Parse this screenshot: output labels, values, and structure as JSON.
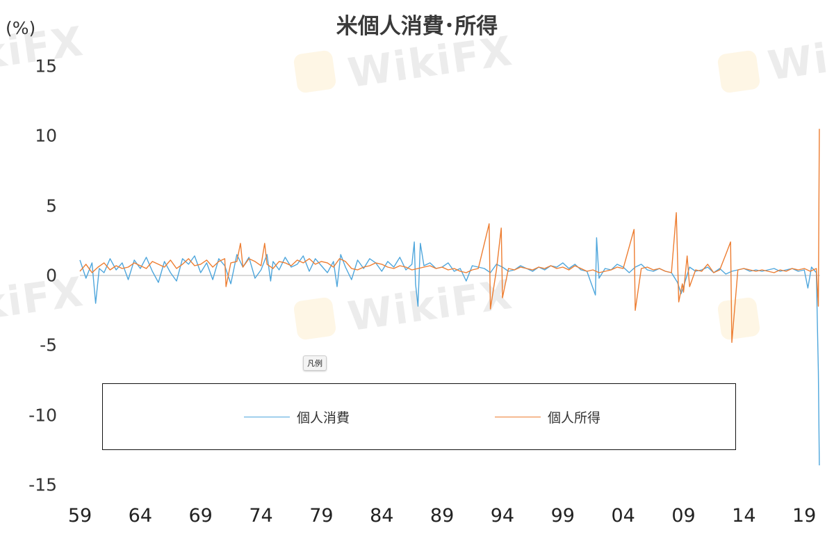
{
  "watermark": "WikiFX",
  "chart_data": {
    "type": "line",
    "title": "米個人消費･所得",
    "ylabel": "(%)",
    "xlabel": "",
    "ylim": [
      -15,
      15
    ],
    "xlim": [
      1959,
      2020.3
    ],
    "y_ticks": [
      "15",
      "10",
      "5",
      "0",
      "-5",
      "-10",
      "-15"
    ],
    "x_ticks": [
      "59",
      "64",
      "69",
      "74",
      "79",
      "84",
      "89",
      "94",
      "99",
      "04",
      "09",
      "14",
      "19"
    ],
    "grid": false,
    "zero_line": true,
    "legend_placement": "bottom-inside",
    "legend_tooltip": "凡例",
    "series": [
      {
        "name": "個人消費",
        "color": "#4ea6dc",
        "points": [
          [
            1959,
            1.1
          ],
          [
            1959.5,
            -0.2
          ],
          [
            1960,
            0.9
          ],
          [
            1960.3,
            -2.0
          ],
          [
            1960.6,
            0.5
          ],
          [
            1961,
            0.2
          ],
          [
            1961.5,
            1.2
          ],
          [
            1962,
            0.4
          ],
          [
            1962.5,
            0.9
          ],
          [
            1963,
            -0.3
          ],
          [
            1963.5,
            1.1
          ],
          [
            1964,
            0.5
          ],
          [
            1964.5,
            1.3
          ],
          [
            1965,
            0.3
          ],
          [
            1965.5,
            -0.5
          ],
          [
            1966,
            1.0
          ],
          [
            1966.5,
            0.2
          ],
          [
            1967,
            -0.4
          ],
          [
            1967.5,
            1.2
          ],
          [
            1968,
            0.8
          ],
          [
            1968.5,
            1.4
          ],
          [
            1969,
            0.2
          ],
          [
            1969.5,
            0.9
          ],
          [
            1970,
            -0.3
          ],
          [
            1970.5,
            1.2
          ],
          [
            1971,
            0.7
          ],
          [
            1971.5,
            -0.6
          ],
          [
            1972,
            1.5
          ],
          [
            1972.5,
            0.6
          ],
          [
            1973,
            1.3
          ],
          [
            1973.5,
            -0.2
          ],
          [
            1974,
            0.4
          ],
          [
            1974.5,
            1.5
          ],
          [
            1974.8,
            -0.4
          ],
          [
            1975,
            1.0
          ],
          [
            1975.5,
            0.4
          ],
          [
            1976,
            1.3
          ],
          [
            1976.5,
            0.6
          ],
          [
            1977,
            0.8
          ],
          [
            1977.5,
            1.4
          ],
          [
            1978,
            0.3
          ],
          [
            1978.5,
            1.2
          ],
          [
            1979,
            0.7
          ],
          [
            1979.5,
            0.2
          ],
          [
            1980,
            1.0
          ],
          [
            1980.3,
            -0.8
          ],
          [
            1980.6,
            1.5
          ],
          [
            1981,
            0.6
          ],
          [
            1981.5,
            -0.3
          ],
          [
            1982,
            1.1
          ],
          [
            1982.5,
            0.5
          ],
          [
            1983,
            1.2
          ],
          [
            1983.5,
            0.9
          ],
          [
            1984,
            0.3
          ],
          [
            1984.5,
            1.0
          ],
          [
            1985,
            0.6
          ],
          [
            1985.5,
            1.3
          ],
          [
            1986,
            0.4
          ],
          [
            1986.5,
            0.8
          ],
          [
            1986.7,
            2.4
          ],
          [
            1986.8,
            -0.6
          ],
          [
            1987,
            -2.2
          ],
          [
            1987.2,
            2.3
          ],
          [
            1987.5,
            0.7
          ],
          [
            1988,
            0.9
          ],
          [
            1988.5,
            0.5
          ],
          [
            1989,
            0.6
          ],
          [
            1989.5,
            0.9
          ],
          [
            1990,
            0.3
          ],
          [
            1990.5,
            0.5
          ],
          [
            1991,
            -0.4
          ],
          [
            1991.5,
            0.7
          ],
          [
            1992,
            0.6
          ],
          [
            1992.5,
            0.5
          ],
          [
            1993,
            0.2
          ],
          [
            1993.5,
            0.8
          ],
          [
            1994,
            0.6
          ],
          [
            1994.5,
            0.3
          ],
          [
            1995,
            0.4
          ],
          [
            1995.5,
            0.7
          ],
          [
            1996,
            0.5
          ],
          [
            1996.5,
            0.3
          ],
          [
            1997,
            0.6
          ],
          [
            1997.5,
            0.4
          ],
          [
            1998,
            0.7
          ],
          [
            1998.5,
            0.6
          ],
          [
            1999,
            0.9
          ],
          [
            1999.5,
            0.5
          ],
          [
            2000,
            0.8
          ],
          [
            2000.5,
            0.4
          ],
          [
            2001,
            0.3
          ],
          [
            2001.7,
            -1.4
          ],
          [
            2001.8,
            2.7
          ],
          [
            2002,
            -0.2
          ],
          [
            2002.5,
            0.5
          ],
          [
            2003,
            0.4
          ],
          [
            2003.5,
            0.8
          ],
          [
            2004,
            0.6
          ],
          [
            2004.5,
            0.2
          ],
          [
            2005,
            0.6
          ],
          [
            2005.5,
            0.8
          ],
          [
            2006,
            0.4
          ],
          [
            2006.5,
            0.3
          ],
          [
            2007,
            0.5
          ],
          [
            2007.5,
            0.3
          ],
          [
            2008,
            0.2
          ],
          [
            2008.5,
            -0.5
          ],
          [
            2008.8,
            -1.3
          ],
          [
            2009,
            -0.8
          ],
          [
            2009.5,
            0.6
          ],
          [
            2010,
            0.3
          ],
          [
            2010.5,
            0.4
          ],
          [
            2011,
            0.6
          ],
          [
            2011.5,
            0.2
          ],
          [
            2012,
            0.5
          ],
          [
            2012.5,
            0.1
          ],
          [
            2013,
            0.3
          ],
          [
            2013.5,
            0.4
          ],
          [
            2014,
            0.5
          ],
          [
            2014.5,
            0.3
          ],
          [
            2015,
            0.4
          ],
          [
            2015.5,
            0.3
          ],
          [
            2016,
            0.4
          ],
          [
            2016.5,
            0.5
          ],
          [
            2017,
            0.3
          ],
          [
            2017.5,
            0.4
          ],
          [
            2018,
            0.5
          ],
          [
            2018.5,
            0.3
          ],
          [
            2019,
            0.4
          ],
          [
            2019.3,
            -0.9
          ],
          [
            2019.6,
            0.6
          ],
          [
            2020,
            0.2
          ],
          [
            2020.17,
            -6.9
          ],
          [
            2020.25,
            -13.6
          ]
        ]
      },
      {
        "name": "個人所得",
        "color": "#ed7d31",
        "points": [
          [
            1959,
            0.3
          ],
          [
            1959.5,
            0.8
          ],
          [
            1960,
            0.2
          ],
          [
            1960.5,
            0.6
          ],
          [
            1961,
            0.9
          ],
          [
            1961.5,
            0.4
          ],
          [
            1962,
            0.7
          ],
          [
            1962.5,
            0.5
          ],
          [
            1963,
            0.6
          ],
          [
            1963.5,
            0.9
          ],
          [
            1964,
            0.7
          ],
          [
            1964.5,
            0.5
          ],
          [
            1965,
            1.0
          ],
          [
            1965.5,
            0.8
          ],
          [
            1966,
            0.6
          ],
          [
            1966.5,
            1.1
          ],
          [
            1967,
            0.5
          ],
          [
            1967.5,
            0.8
          ],
          [
            1968,
            1.2
          ],
          [
            1968.5,
            0.7
          ],
          [
            1969,
            0.8
          ],
          [
            1969.5,
            1.1
          ],
          [
            1970,
            0.6
          ],
          [
            1970.5,
            1.0
          ],
          [
            1971,
            1.2
          ],
          [
            1971.1,
            -0.8
          ],
          [
            1971.5,
            0.9
          ],
          [
            1972,
            1.0
          ],
          [
            1972.3,
            2.3
          ],
          [
            1972.5,
            0.6
          ],
          [
            1973,
            1.2
          ],
          [
            1973.5,
            1.0
          ],
          [
            1974,
            0.7
          ],
          [
            1974.3,
            2.3
          ],
          [
            1974.5,
            0.8
          ],
          [
            1975,
            0.5
          ],
          [
            1975.5,
            1.0
          ],
          [
            1976,
            0.9
          ],
          [
            1976.5,
            0.7
          ],
          [
            1977,
            1.1
          ],
          [
            1977.5,
            0.9
          ],
          [
            1978,
            1.2
          ],
          [
            1978.5,
            0.8
          ],
          [
            1979,
            1.0
          ],
          [
            1979.5,
            0.9
          ],
          [
            1980,
            0.6
          ],
          [
            1980.5,
            1.2
          ],
          [
            1981,
            1.0
          ],
          [
            1981.5,
            0.5
          ],
          [
            1982,
            0.4
          ],
          [
            1982.5,
            0.6
          ],
          [
            1983,
            0.7
          ],
          [
            1983.5,
            0.9
          ],
          [
            1984,
            0.8
          ],
          [
            1984.5,
            0.6
          ],
          [
            1985,
            0.5
          ],
          [
            1985.5,
            0.7
          ],
          [
            1986,
            0.6
          ],
          [
            1986.5,
            0.4
          ],
          [
            1987,
            0.5
          ],
          [
            1987.5,
            0.6
          ],
          [
            1988,
            0.7
          ],
          [
            1988.5,
            0.5
          ],
          [
            1989,
            0.6
          ],
          [
            1989.5,
            0.4
          ],
          [
            1990,
            0.5
          ],
          [
            1990.5,
            0.3
          ],
          [
            1991,
            0.2
          ],
          [
            1991.5,
            0.4
          ],
          [
            1992,
            0.5
          ],
          [
            1992.9,
            3.7
          ],
          [
            1993.0,
            -2.4
          ],
          [
            1993.5,
            0.4
          ],
          [
            1993.9,
            3.4
          ],
          [
            1994.0,
            -1.6
          ],
          [
            1994.5,
            0.5
          ],
          [
            1995,
            0.4
          ],
          [
            1995.5,
            0.6
          ],
          [
            1996,
            0.5
          ],
          [
            1996.5,
            0.4
          ],
          [
            1997,
            0.6
          ],
          [
            1997.5,
            0.5
          ],
          [
            1998,
            0.7
          ],
          [
            1998.5,
            0.5
          ],
          [
            1999,
            0.6
          ],
          [
            1999.5,
            0.4
          ],
          [
            2000,
            0.7
          ],
          [
            2000.5,
            0.5
          ],
          [
            2001,
            0.3
          ],
          [
            2001.5,
            0.4
          ],
          [
            2002,
            0.2
          ],
          [
            2002.5,
            0.3
          ],
          [
            2003,
            0.4
          ],
          [
            2003.5,
            0.6
          ],
          [
            2004,
            0.5
          ],
          [
            2004.9,
            3.3
          ],
          [
            2005.0,
            -2.5
          ],
          [
            2005.5,
            0.5
          ],
          [
            2006,
            0.6
          ],
          [
            2006.5,
            0.4
          ],
          [
            2007,
            0.5
          ],
          [
            2007.5,
            0.3
          ],
          [
            2008,
            0.2
          ],
          [
            2008.4,
            4.5
          ],
          [
            2008.6,
            -1.9
          ],
          [
            2008.9,
            -0.6
          ],
          [
            2009,
            -1.2
          ],
          [
            2009.3,
            1.4
          ],
          [
            2009.5,
            -0.8
          ],
          [
            2010,
            0.4
          ],
          [
            2010.5,
            0.3
          ],
          [
            2011,
            0.8
          ],
          [
            2011.5,
            0.2
          ],
          [
            2012,
            0.4
          ],
          [
            2012.5,
            1.5
          ],
          [
            2012.9,
            2.4
          ],
          [
            2013.0,
            -4.8
          ],
          [
            2013.5,
            0.4
          ],
          [
            2014,
            0.5
          ],
          [
            2014.5,
            0.4
          ],
          [
            2015,
            0.3
          ],
          [
            2015.5,
            0.4
          ],
          [
            2016,
            0.3
          ],
          [
            2016.5,
            0.2
          ],
          [
            2017,
            0.4
          ],
          [
            2017.5,
            0.3
          ],
          [
            2018,
            0.5
          ],
          [
            2018.5,
            0.4
          ],
          [
            2019,
            0.5
          ],
          [
            2019.5,
            0.3
          ],
          [
            2020,
            0.5
          ],
          [
            2020.17,
            -2.2
          ],
          [
            2020.25,
            10.5
          ]
        ]
      }
    ]
  }
}
